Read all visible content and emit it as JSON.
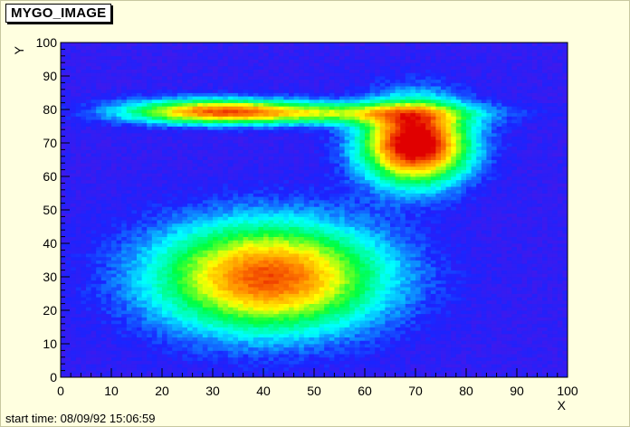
{
  "window": {
    "title": "MYGO_IMAGE",
    "footer": "start time: 08/09/92 15:06:59"
  },
  "colors": {
    "background": "#ffffe0",
    "plot_low": "#6a0dd8",
    "plot_mid_low": "#1a24ff",
    "plot_mid": "#00ff40",
    "plot_mid_high": "#ffff00",
    "plot_high": "#e00000"
  },
  "chart_data": {
    "type": "heatmap",
    "title": "MYGO_IMAGE",
    "xlabel": "X",
    "ylabel": "Y",
    "xlim": [
      0,
      100
    ],
    "ylim": [
      0,
      100
    ],
    "x_ticks": [
      0,
      10,
      20,
      30,
      40,
      50,
      60,
      70,
      80,
      90,
      100
    ],
    "y_ticks": [
      0,
      10,
      20,
      30,
      40,
      50,
      60,
      70,
      80,
      90,
      100
    ],
    "grid": false,
    "legend": "none",
    "colormap": [
      "#6a0dd8",
      "#1a24ff",
      "#00ffff",
      "#00ff40",
      "#ffff00",
      "#ff8000",
      "#e00000"
    ],
    "background_level": 0.12,
    "components": [
      {
        "label": "lower blob",
        "x": 41,
        "y": 30,
        "sigma_x": 15,
        "sigma_y": 11,
        "peak": 0.78
      },
      {
        "label": "upper-right blob",
        "x": 70,
        "y": 70,
        "sigma_x": 7,
        "sigma_y": 8,
        "peak": 1.0
      },
      {
        "label": "upper-left streak",
        "x": 30,
        "y": 79.5,
        "sigma_x": 12,
        "sigma_y": 2.5,
        "peak": 0.62
      },
      {
        "label": "connecting band",
        "x": 55,
        "y": 79,
        "sigma_x": 18,
        "sigma_y": 2.2,
        "peak": 0.4
      }
    ]
  }
}
